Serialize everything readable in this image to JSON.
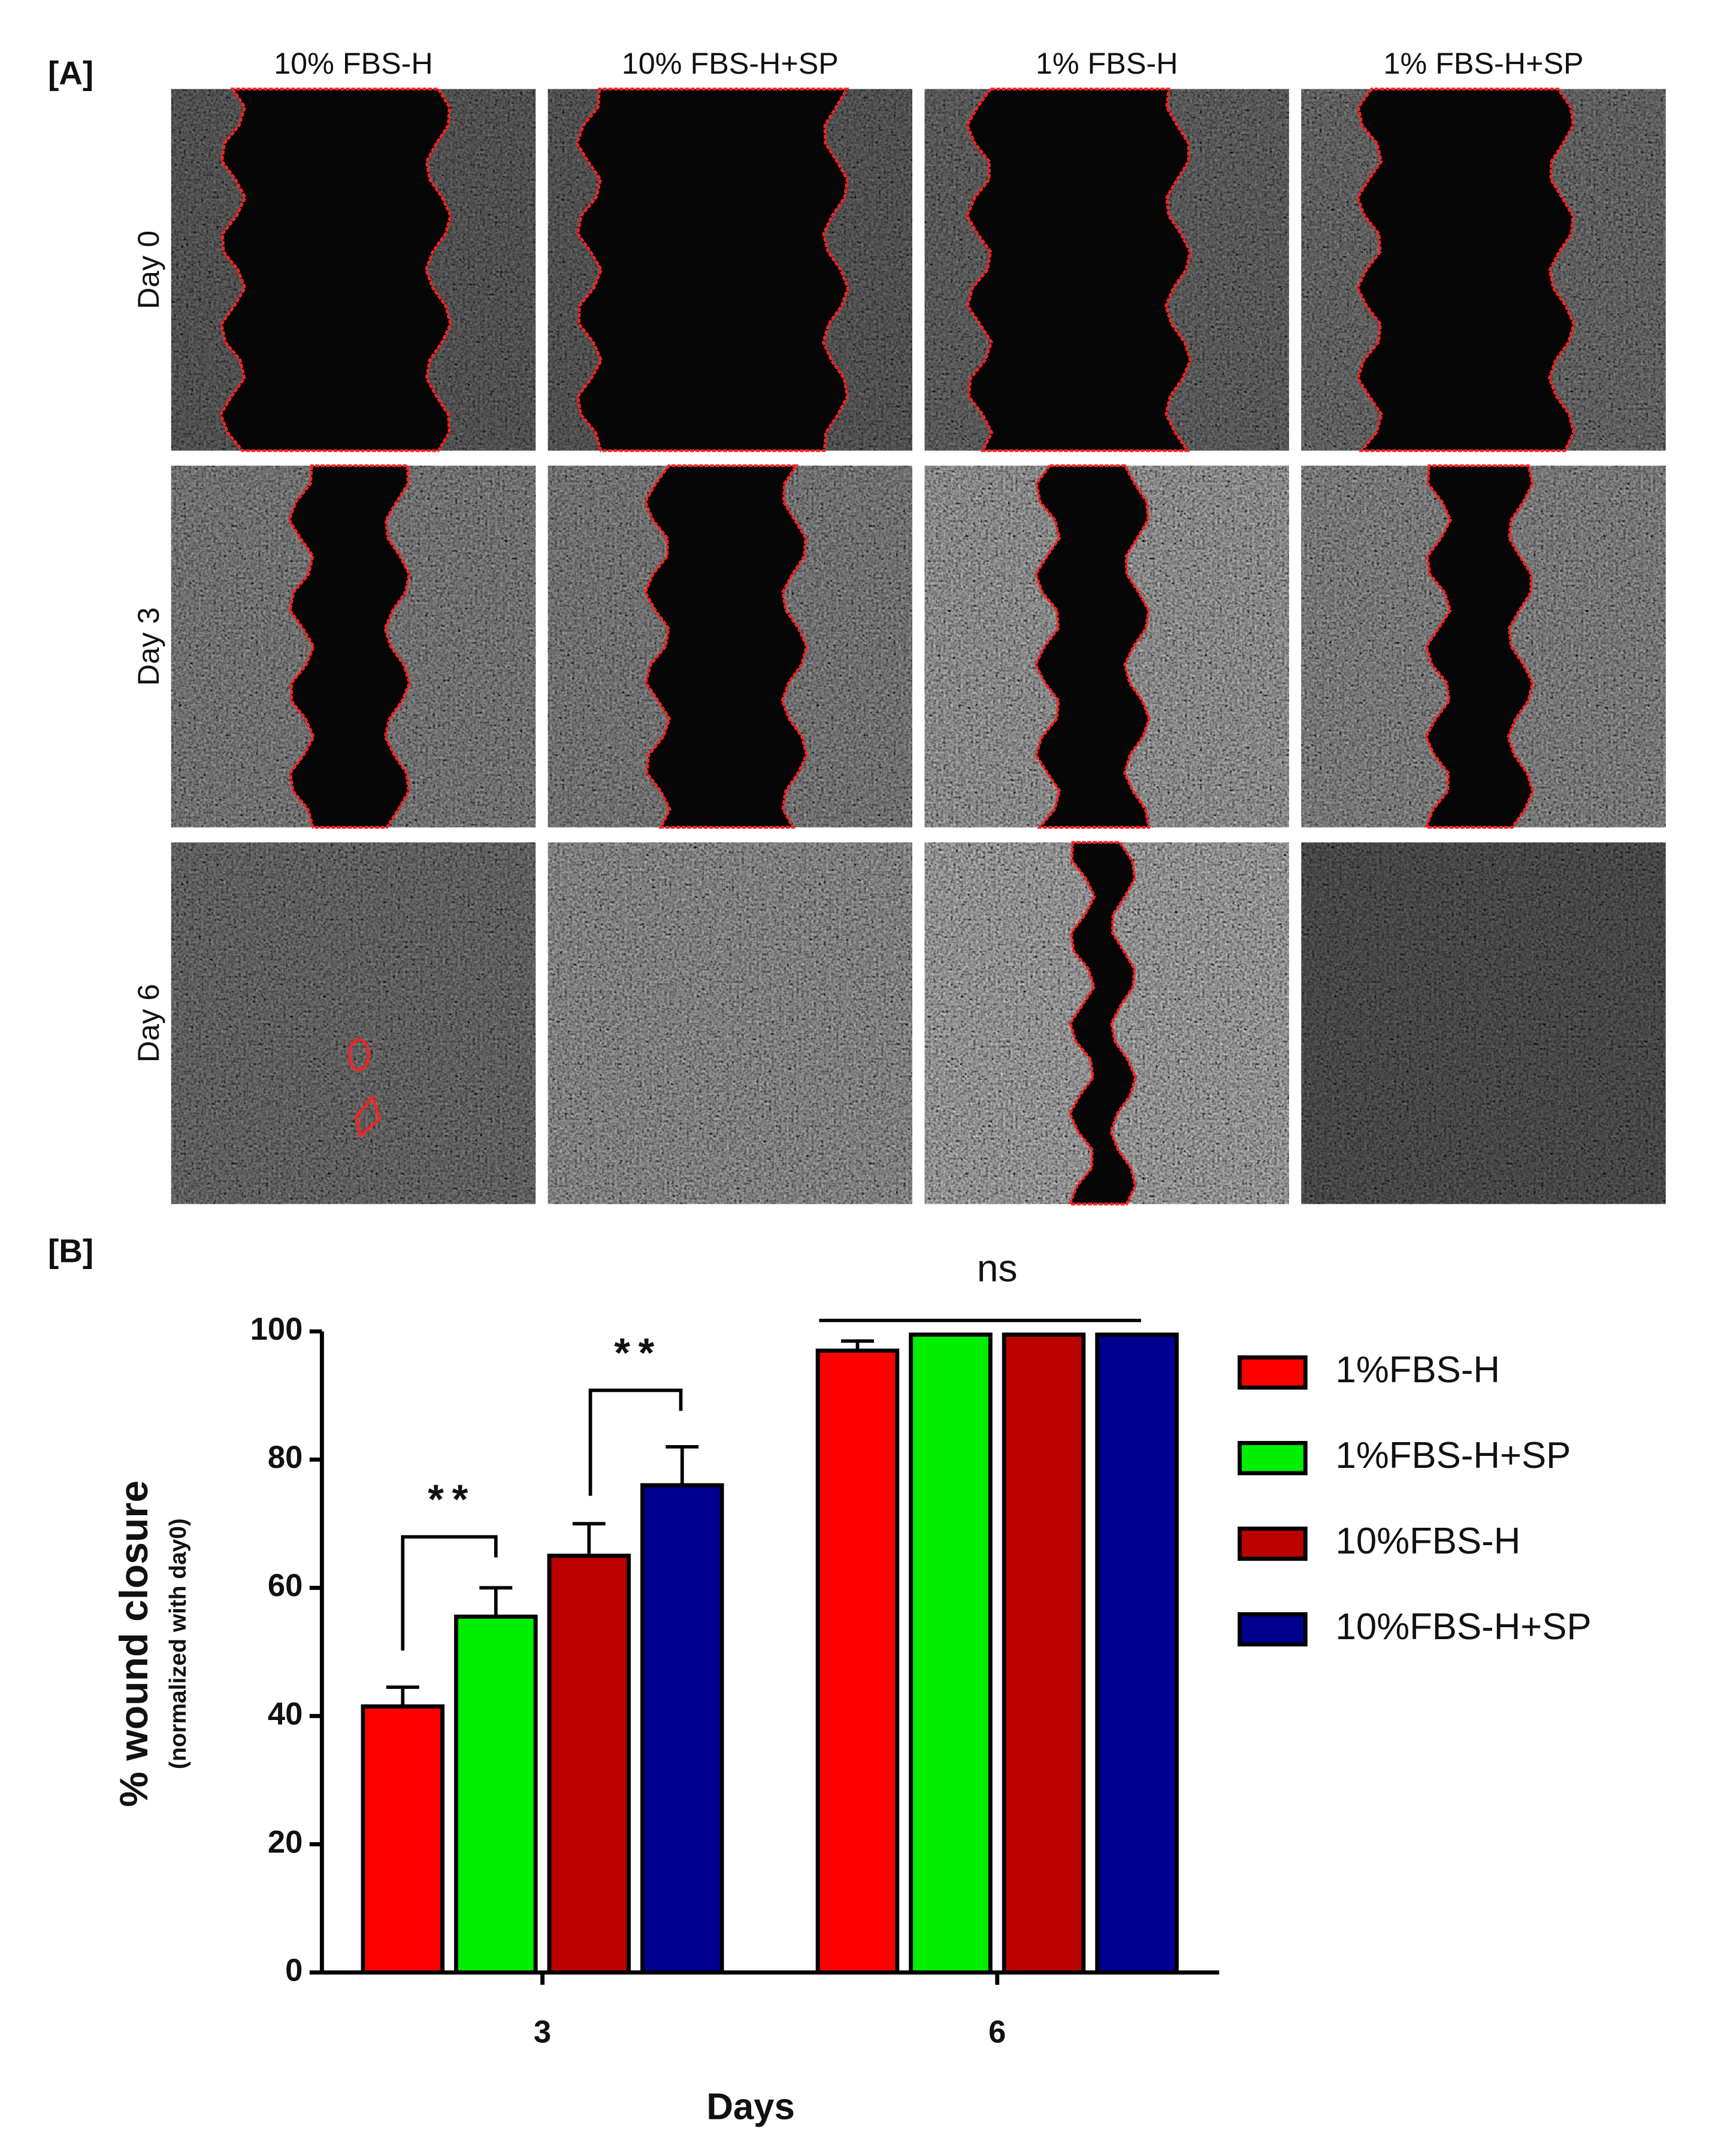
{
  "panel_a": {
    "label": "[A]",
    "columns": [
      "10% FBS-H",
      "10% FBS-H+SP",
      "1% FBS-H",
      "1% FBS-H+SP"
    ],
    "rows": [
      "Day 0",
      "Day 3",
      "Day 6"
    ]
  },
  "chart_data": {
    "type": "bar",
    "panel_label": "[B]",
    "categories": [
      "3",
      "6"
    ],
    "series": [
      {
        "name": "1%FBS-H",
        "color": "#ff0000",
        "values": [
          41.5,
          97
        ],
        "errors": [
          3,
          1.5
        ]
      },
      {
        "name": "1%FBS-H+SP",
        "color": "#00ee00",
        "values": [
          55.5,
          99.5
        ],
        "errors": [
          4.5,
          0
        ]
      },
      {
        "name": "10%FBS-H",
        "color": "#bb0000",
        "values": [
          65,
          99.5
        ],
        "errors": [
          5,
          0
        ]
      },
      {
        "name": "10%FBS-H+SP",
        "color": "#000090",
        "values": [
          76,
          99.5
        ],
        "errors": [
          6,
          0
        ]
      }
    ],
    "ylim": [
      0,
      100
    ],
    "yticks": [
      0,
      20,
      40,
      60,
      80,
      100
    ],
    "xlabel": "Days",
    "ylabel": "% wound closure",
    "ylabel_sub": "(normalized with day0)",
    "annotations": [
      "**",
      "**",
      "ns"
    ],
    "legend": "right"
  }
}
